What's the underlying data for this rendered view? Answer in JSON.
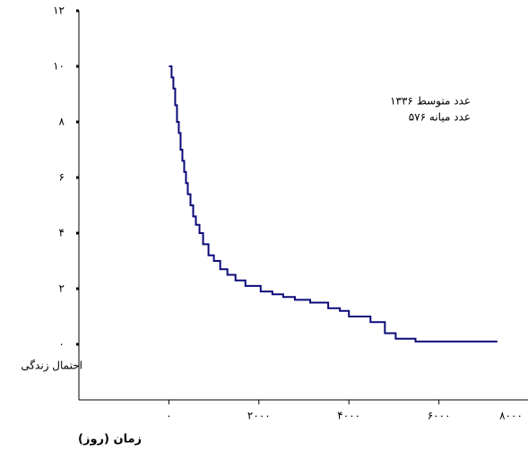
{
  "chart_data": {
    "type": "line",
    "step": true,
    "annotations": [
      "عدد متوسط ۱۳۳۶",
      "عدد میانه ۵۷۶"
    ],
    "y_label": "احتمال زندگی",
    "x_label": "زمان (روز)",
    "color": "#0a0a7a",
    "xlim": [
      -2000,
      8000
    ],
    "xticks": [
      {
        "value": 0,
        "label": "۰"
      },
      {
        "value": 2000,
        "label": "۲۰۰۰"
      },
      {
        "value": 4000,
        "label": "۴۰۰۰"
      },
      {
        "value": 6000,
        "label": "۶۰۰۰"
      },
      {
        "value": 8000,
        "label": "۸۰۰۰"
      }
    ],
    "ylim": [
      -2,
      12
    ],
    "yticks": [
      {
        "value": 0,
        "label": "۰"
      },
      {
        "value": 2,
        "label": "۲"
      },
      {
        "value": 4,
        "label": "۴"
      },
      {
        "value": 6,
        "label": "۶"
      },
      {
        "value": 8,
        "label": "۸"
      },
      {
        "value": 10,
        "label": "۱۰"
      },
      {
        "value": 12,
        "label": "۱۲"
      }
    ],
    "x": [
      0,
      60,
      100,
      140,
      180,
      220,
      260,
      300,
      340,
      380,
      420,
      480,
      540,
      600,
      680,
      760,
      880,
      1000,
      1140,
      1300,
      1480,
      1700,
      2040,
      2300,
      2540,
      2800,
      3140,
      3540,
      3800,
      4000,
      4480,
      4800,
      5040,
      5480,
      7300
    ],
    "values": [
      10,
      9.6,
      9.2,
      8.6,
      8.0,
      7.6,
      7.0,
      6.6,
      6.2,
      5.8,
      5.4,
      5.0,
      4.6,
      4.3,
      4.0,
      3.6,
      3.2,
      3.0,
      2.7,
      2.5,
      2.3,
      2.1,
      1.9,
      1.8,
      1.7,
      1.6,
      1.5,
      1.3,
      1.2,
      1.0,
      0.8,
      0.4,
      0.2,
      0.1,
      0.1
    ]
  }
}
